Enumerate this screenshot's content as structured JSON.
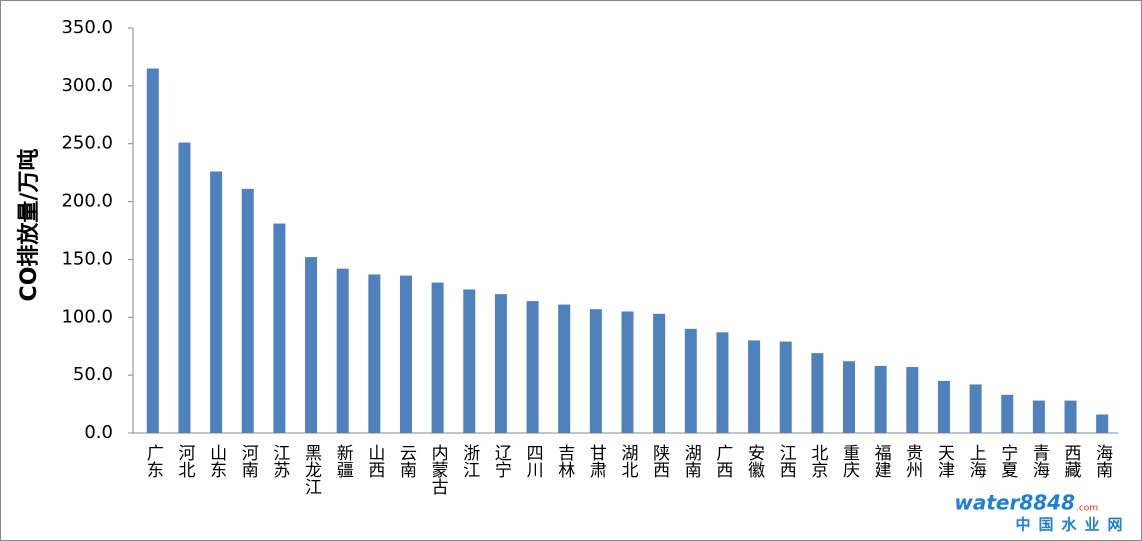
{
  "chart_data": {
    "type": "bar",
    "ylabel": "CO排放量/万吨",
    "categories": [
      "广东",
      "河北",
      "山东",
      "河南",
      "江苏",
      "黑龙江",
      "新疆",
      "山西",
      "云南",
      "内蒙古",
      "浙江",
      "辽宁",
      "四川",
      "吉林",
      "甘肃",
      "湖北",
      "陕西",
      "湖南",
      "广西",
      "安徽",
      "江西",
      "北京",
      "重庆",
      "福建",
      "贵州",
      "天津",
      "上海",
      "宁夏",
      "青海",
      "西藏",
      "海南"
    ],
    "values": [
      315,
      251,
      226,
      211,
      181,
      152,
      142,
      137,
      136,
      130,
      124,
      120,
      114,
      111,
      107,
      105,
      103,
      90,
      87,
      80,
      79,
      69,
      62,
      58,
      57,
      45,
      42,
      33,
      28,
      28,
      16
    ],
    "color": "#4f81bd",
    "ylim": [
      0,
      350
    ],
    "yticks": [
      {
        "value": 0,
        "label": "0.0"
      },
      {
        "value": 50,
        "label": "50.0"
      },
      {
        "value": 100,
        "label": "100.0"
      },
      {
        "value": 150,
        "label": "150.0"
      },
      {
        "value": 200,
        "label": "200.0"
      },
      {
        "value": 250,
        "label": "250.0"
      },
      {
        "value": 300,
        "label": "300.0"
      },
      {
        "value": 350,
        "label": "350.0"
      }
    ],
    "grid": false
  },
  "watermark": {
    "brand": "water8848",
    "domain": ".com",
    "name": "中国水业网"
  }
}
